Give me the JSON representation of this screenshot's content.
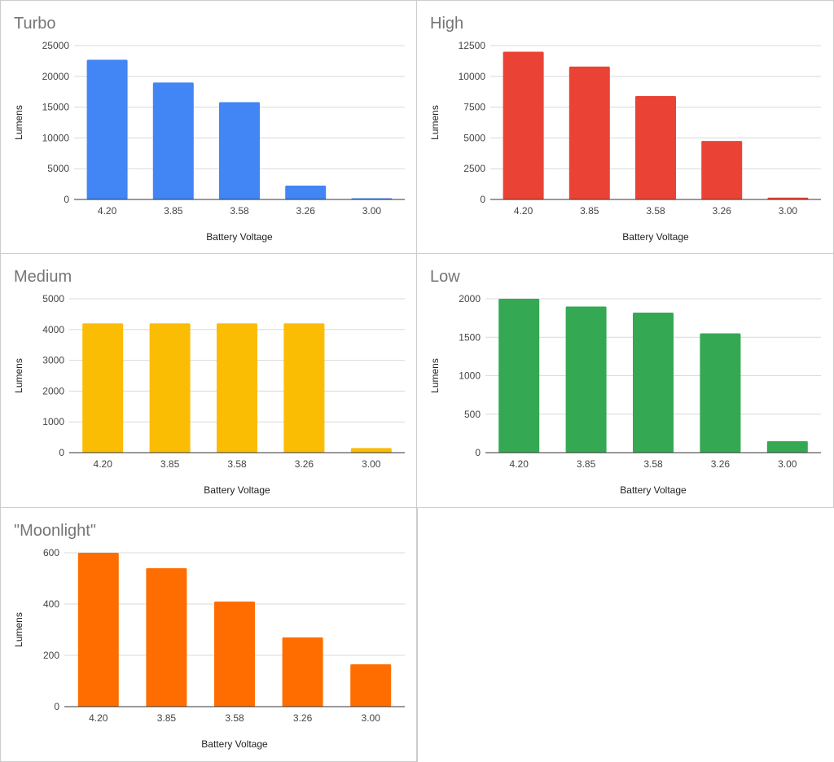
{
  "chart_data": [
    {
      "type": "bar",
      "title": "Turbo",
      "xlabel": "Battery Voltage",
      "ylabel": "Lumens",
      "categories": [
        "4.20",
        "3.85",
        "3.58",
        "3.26",
        "3.00"
      ],
      "values": [
        22700,
        19000,
        15800,
        2250,
        200
      ],
      "ylim": [
        0,
        25000
      ],
      "yticks": [
        0,
        5000,
        10000,
        15000,
        20000,
        25000
      ],
      "color": "#4285F4",
      "grid": true,
      "legend": "none"
    },
    {
      "type": "bar",
      "title": "High",
      "xlabel": "Battery Voltage",
      "ylabel": "Lumens",
      "categories": [
        "4.20",
        "3.85",
        "3.58",
        "3.26",
        "3.00"
      ],
      "values": [
        12000,
        10800,
        8400,
        4750,
        150
      ],
      "ylim": [
        0,
        12500
      ],
      "yticks": [
        0,
        2500,
        5000,
        7500,
        10000,
        12500
      ],
      "color": "#EA4335",
      "grid": true,
      "legend": "none"
    },
    {
      "type": "bar",
      "title": "Medium",
      "xlabel": "Battery Voltage",
      "ylabel": "Lumens",
      "categories": [
        "4.20",
        "3.85",
        "3.58",
        "3.26",
        "3.00"
      ],
      "values": [
        4200,
        4200,
        4200,
        4200,
        150
      ],
      "ylim": [
        0,
        5000
      ],
      "yticks": [
        0,
        1000,
        2000,
        3000,
        4000,
        5000
      ],
      "color": "#FBBC04",
      "grid": true,
      "legend": "none"
    },
    {
      "type": "bar",
      "title": "Low",
      "xlabel": "Battery Voltage",
      "ylabel": "Lumens",
      "categories": [
        "4.20",
        "3.85",
        "3.58",
        "3.26",
        "3.00"
      ],
      "values": [
        2000,
        1900,
        1820,
        1550,
        150
      ],
      "ylim": [
        0,
        2000
      ],
      "yticks": [
        0,
        500,
        1000,
        1500,
        2000
      ],
      "color": "#34A853",
      "grid": true,
      "legend": "none"
    },
    {
      "type": "bar",
      "title": "\"Moonlight\"",
      "xlabel": "Battery Voltage",
      "ylabel": "Lumens",
      "categories": [
        "4.20",
        "3.85",
        "3.58",
        "3.26",
        "3.00"
      ],
      "values": [
        600,
        540,
        410,
        270,
        165
      ],
      "ylim": [
        0,
        600
      ],
      "yticks": [
        0,
        200,
        400,
        600
      ],
      "color": "#FF6D01",
      "grid": true,
      "legend": "none"
    }
  ]
}
